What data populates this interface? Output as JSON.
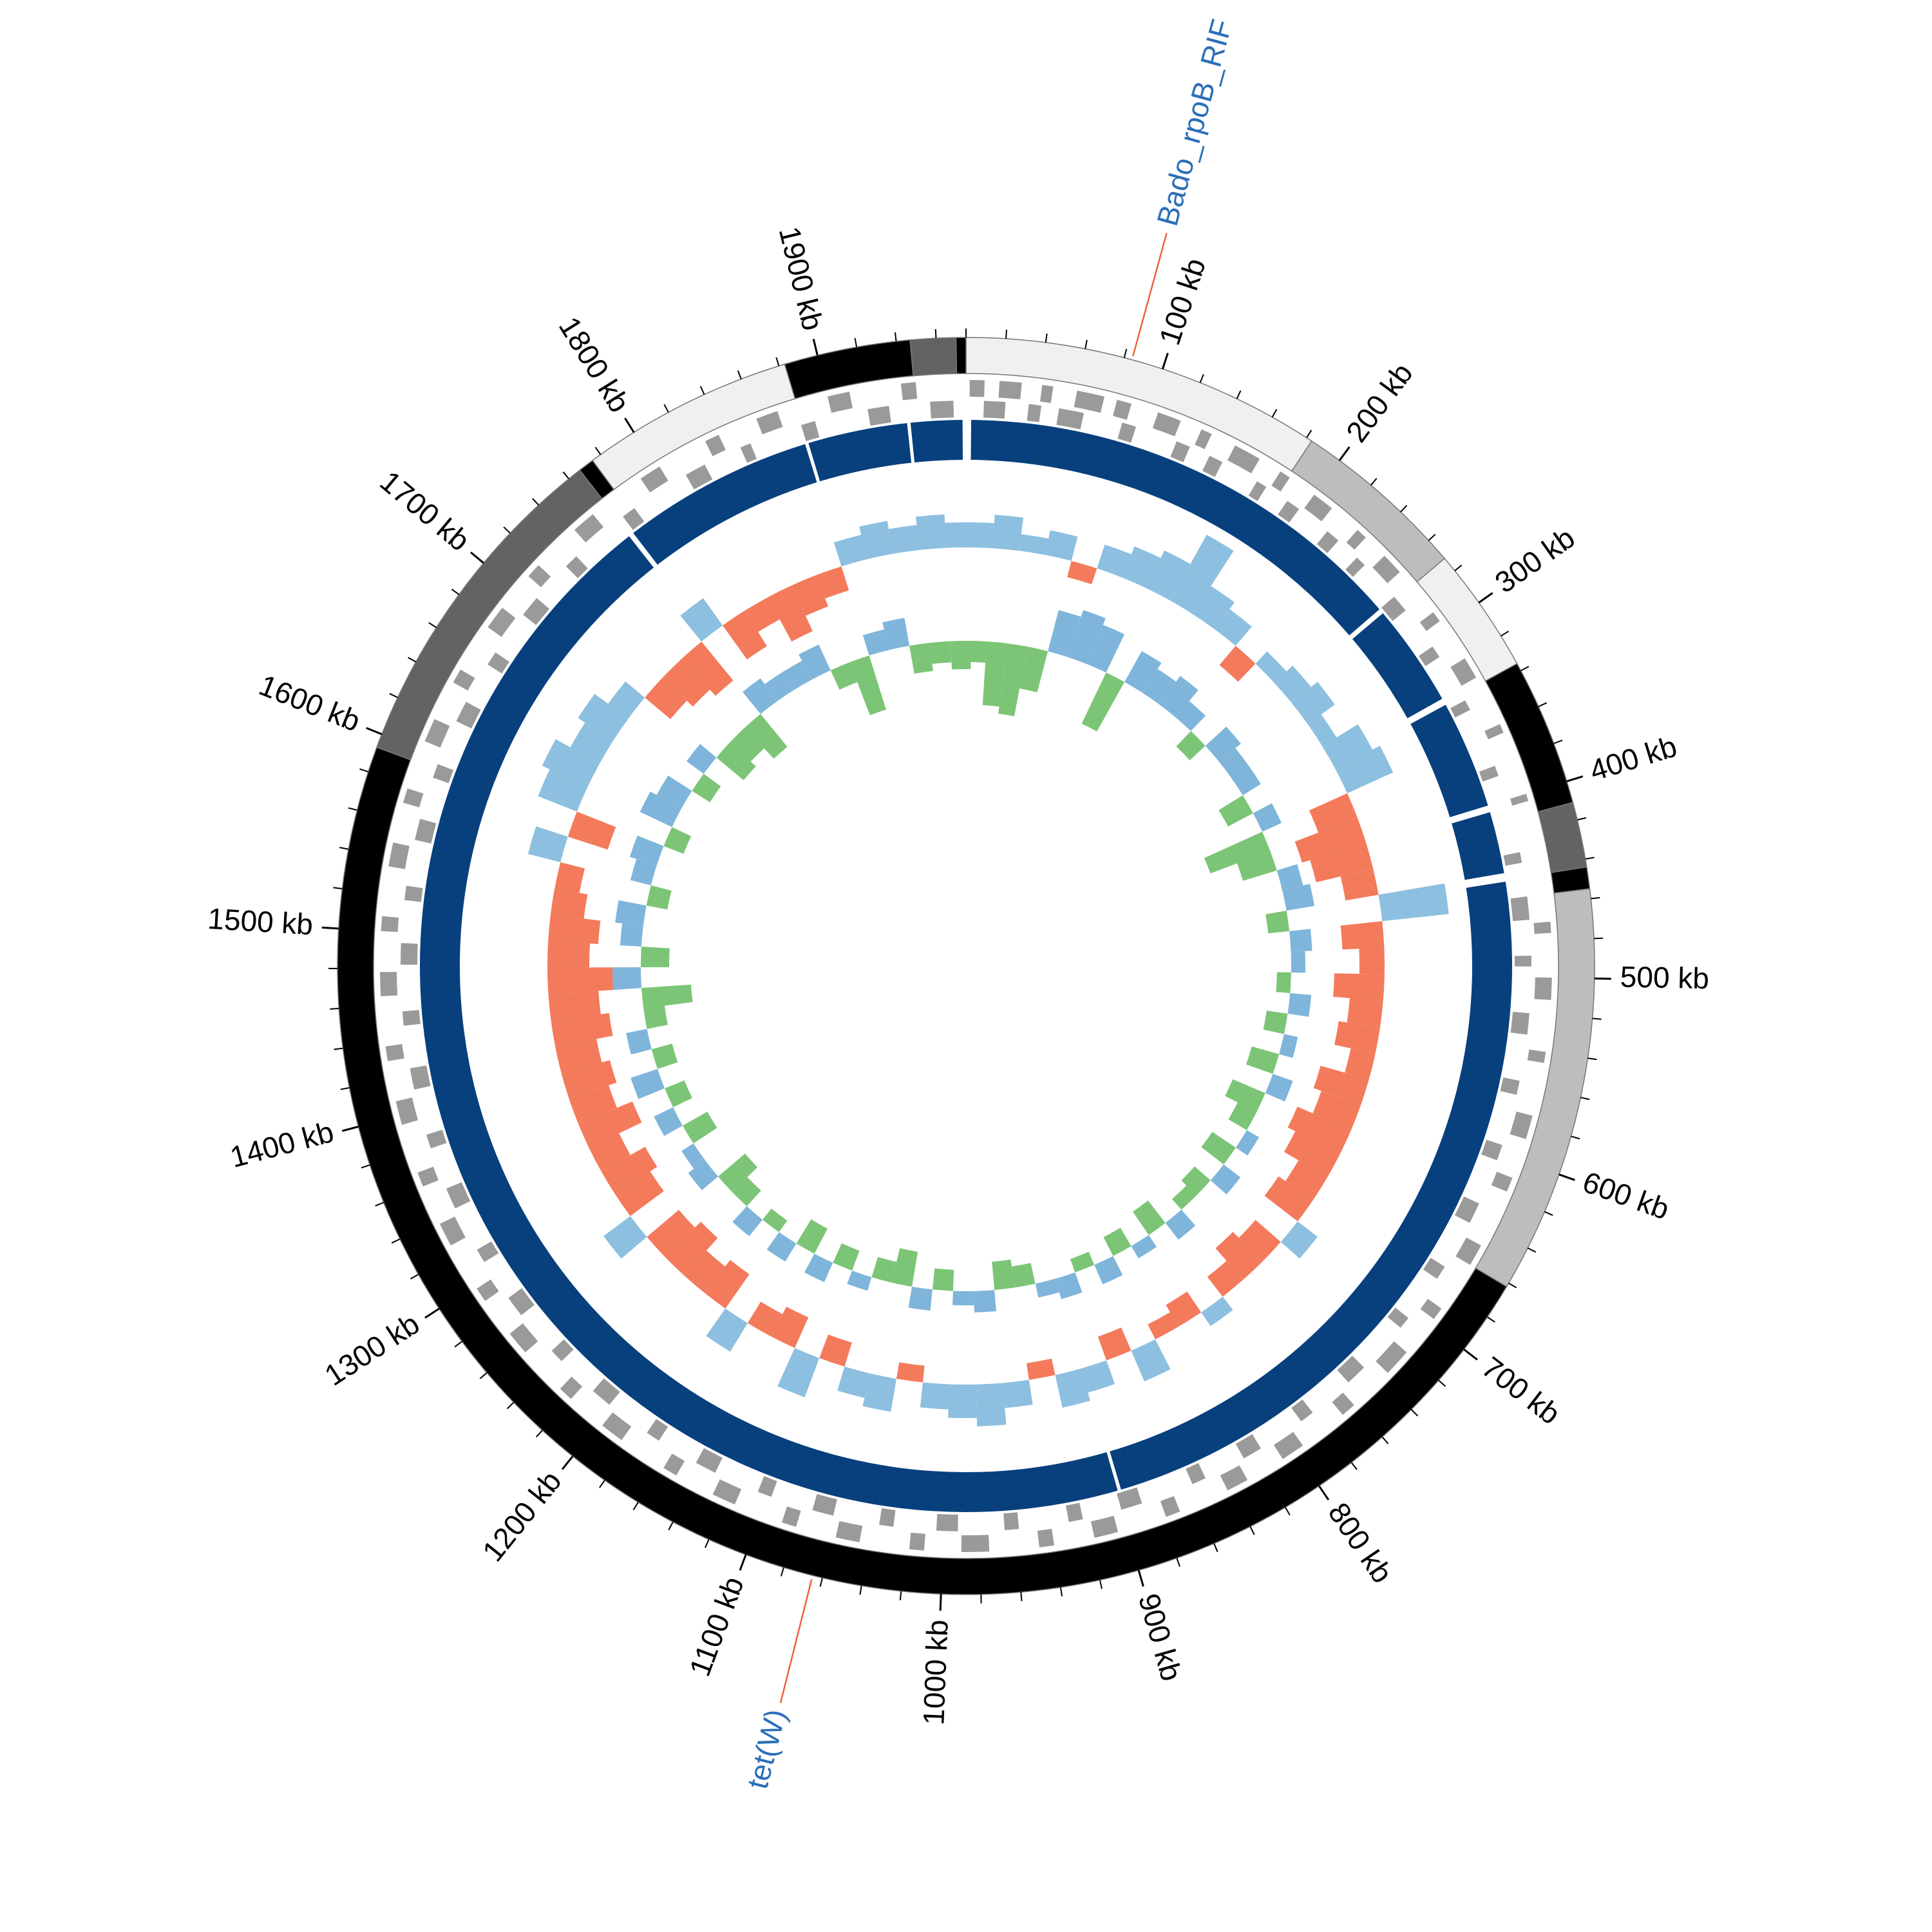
{
  "chart_data": {
    "type": "circular-genome",
    "xlim": [
      0,
      1975
    ],
    "xticks": [
      {
        "value": 100,
        "label": "100 kb"
      },
      {
        "value": 200,
        "label": "200 kb"
      },
      {
        "value": 300,
        "label": "300 kb"
      },
      {
        "value": 400,
        "label": "400 kb"
      },
      {
        "value": 500,
        "label": "500 kb"
      },
      {
        "value": 600,
        "label": "600 kb"
      },
      {
        "value": 700,
        "label": "700 kb"
      },
      {
        "value": 800,
        "label": "800 kb"
      },
      {
        "value": 900,
        "label": "900 kb"
      },
      {
        "value": 1000,
        "label": "1000 kb"
      },
      {
        "value": 1100,
        "label": "1100 kb"
      },
      {
        "value": 1200,
        "label": "1200 kb"
      },
      {
        "value": 1300,
        "label": "1300 kb"
      },
      {
        "value": 1400,
        "label": "1400 kb"
      },
      {
        "value": 1500,
        "label": "1500 kb"
      },
      {
        "value": 1600,
        "label": "1600 kb"
      },
      {
        "value": 1700,
        "label": "1700 kb"
      },
      {
        "value": 1800,
        "label": "1800 kb"
      },
      {
        "value": 1900,
        "label": "1900 kb"
      }
    ],
    "minor_tick_step": 20,
    "contigs": [
      {
        "start": 0,
        "end": 183,
        "color": "#f0f0f0"
      },
      {
        "start": 183,
        "end": 272,
        "color": "#bdbdbd"
      },
      {
        "start": 272,
        "end": 336,
        "color": "#f0f0f0"
      },
      {
        "start": 336,
        "end": 411,
        "color": "#000000"
      },
      {
        "start": 411,
        "end": 444,
        "color": "#636363"
      },
      {
        "start": 444,
        "end": 455,
        "color": "#000000"
      },
      {
        "start": 455,
        "end": 662,
        "color": "#bdbdbd"
      },
      {
        "start": 662,
        "end": 1593,
        "color": "#000000"
      },
      {
        "start": 1593,
        "end": 1767,
        "color": "#636363"
      },
      {
        "start": 1767,
        "end": 1775,
        "color": "#000000"
      },
      {
        "start": 1775,
        "end": 1883,
        "color": "#f0f0f0"
      },
      {
        "start": 1883,
        "end": 1947,
        "color": "#000000"
      },
      {
        "start": 1947,
        "end": 1970,
        "color": "#636363"
      },
      {
        "start": 1970,
        "end": 1975,
        "color": "#000000"
      }
    ],
    "genes": {
      "color": "#9a9a9a",
      "forward": [
        [
          2,
          10
        ],
        [
          18,
          30
        ],
        [
          41,
          47
        ],
        [
          60,
          75
        ],
        [
          82,
          90
        ],
        [
          105,
          118
        ],
        [
          130,
          136
        ],
        [
          150,
          165
        ],
        [
          178,
          184
        ],
        [
          200,
          212
        ],
        [
          230,
          236
        ],
        [
          250,
          262
        ],
        [
          290,
          296
        ],
        [
          320,
          332
        ],
        [
          360,
          365
        ],
        [
          400,
          404
        ],
        [
          470,
          476
        ],
        [
          500,
          512
        ],
        [
          540,
          546
        ],
        [
          575,
          588
        ],
        [
          610,
          618
        ],
        [
          650,
          662
        ],
        [
          690,
          697
        ],
        [
          720,
          735
        ],
        [
          760,
          768
        ],
        [
          795,
          808
        ],
        [
          830,
          842
        ],
        [
          870,
          878
        ],
        [
          905,
          918
        ],
        [
          940,
          948
        ],
        [
          975,
          990
        ],
        [
          1010,
          1018
        ],
        [
          1045,
          1058
        ],
        [
          1080,
          1088
        ],
        [
          1115,
          1128
        ],
        [
          1150,
          1158
        ],
        [
          1185,
          1198
        ],
        [
          1220,
          1228
        ],
        [
          1255,
          1268
        ],
        [
          1290,
          1298
        ],
        [
          1325,
          1338
        ],
        [
          1360,
          1368
        ],
        [
          1395,
          1408
        ],
        [
          1430,
          1438
        ],
        [
          1465,
          1478
        ],
        [
          1500,
          1508
        ],
        [
          1535,
          1548
        ],
        [
          1570,
          1578
        ],
        [
          1605,
          1618
        ],
        [
          1640,
          1648
        ],
        [
          1675,
          1688
        ],
        [
          1710,
          1718
        ],
        [
          1745,
          1758
        ],
        [
          1790,
          1802
        ],
        [
          1830,
          1838
        ],
        [
          1860,
          1872
        ],
        [
          1900,
          1912
        ],
        [
          1940,
          1948
        ]
      ],
      "reverse": [
        [
          10,
          22
        ],
        [
          35,
          42
        ],
        [
          52,
          66
        ],
        [
          88,
          96
        ],
        [
          120,
          128
        ],
        [
          140,
          148
        ],
        [
          170,
          176
        ],
        [
          190,
          198
        ],
        [
          218,
          226
        ],
        [
          240,
          246
        ],
        [
          270,
          280
        ],
        [
          305,
          312
        ],
        [
          340,
          346
        ],
        [
          380,
          386
        ],
        [
          430,
          436
        ],
        [
          455,
          468
        ],
        [
          488,
          494
        ],
        [
          520,
          532
        ],
        [
          558,
          566
        ],
        [
          595,
          604
        ],
        [
          630,
          642
        ],
        [
          670,
          678
        ],
        [
          705,
          712
        ],
        [
          742,
          754
        ],
        [
          780,
          788
        ],
        [
          815,
          826
        ],
        [
          850,
          858
        ],
        [
          888,
          900
        ],
        [
          922,
          930
        ],
        [
          958,
          966
        ],
        [
          992,
          1004
        ],
        [
          1028,
          1036
        ],
        [
          1062,
          1074
        ],
        [
          1098,
          1106
        ],
        [
          1132,
          1144
        ],
        [
          1168,
          1176
        ],
        [
          1202,
          1214
        ],
        [
          1238,
          1246
        ],
        [
          1272,
          1284
        ],
        [
          1308,
          1316
        ],
        [
          1342,
          1354
        ],
        [
          1378,
          1386
        ],
        [
          1412,
          1424
        ],
        [
          1448,
          1456
        ],
        [
          1482,
          1494
        ],
        [
          1518,
          1526
        ],
        [
          1552,
          1564
        ],
        [
          1588,
          1596
        ],
        [
          1622,
          1634
        ],
        [
          1658,
          1666
        ],
        [
          1692,
          1704
        ],
        [
          1728,
          1736
        ],
        [
          1770,
          1778
        ],
        [
          1812,
          1824
        ],
        [
          1846,
          1852
        ],
        [
          1882,
          1890
        ],
        [
          1920,
          1932
        ],
        [
          1955,
          1968
        ]
      ]
    },
    "hits": {
      "color": "#08407e",
      "segments": [
        [
          3,
          270
        ],
        [
          273,
          333
        ],
        [
          337,
          400
        ],
        [
          404,
          440
        ],
        [
          445,
          897
        ],
        [
          899,
          1766
        ],
        [
          1769,
          1881
        ],
        [
          1883,
          1941
        ],
        [
          1943,
          1973
        ]
      ]
    },
    "gc_content": {
      "step": 20,
      "positive_color": "#8dbfe0",
      "negative_color": "#f47a5c",
      "values": [
        0.3,
        0.4,
        0.2,
        0.3,
        -0.2,
        0.3,
        0.4,
        0.5,
        0.9,
        0.4,
        0.3,
        -0.3,
        0.2,
        0.3,
        0.4,
        0.2,
        0.5,
        0.6,
        -0.5,
        -0.8,
        -0.7,
        -0.4,
        0.8,
        -0.5,
        -0.3,
        -0.6,
        -0.4,
        -0.5,
        -0.3,
        -0.6,
        -0.5,
        -0.7,
        -0.6,
        -0.4,
        -0.5,
        0.3,
        -0.4,
        -0.5,
        -0.3,
        0.2,
        -0.3,
        -0.2,
        0.4,
        -0.3,
        0.3,
        0.4,
        -0.2,
        0.3,
        0.5,
        0.4,
        0.3,
        -0.2,
        0.4,
        0.3,
        -0.3,
        0.5,
        -0.4,
        -0.3,
        0.4,
        -0.5,
        -0.4,
        -0.6,
        -0.5,
        0.4,
        -0.5,
        -0.6,
        -0.4,
        -0.7,
        -0.5,
        -0.6,
        -0.5,
        -0.7,
        -0.6,
        -0.8,
        -0.5,
        -0.6,
        -0.4,
        -0.3,
        0.4,
        -0.5,
        0.5,
        0.6,
        0.4,
        0.5,
        0.3,
        -0.4,
        -0.5,
        -0.6,
        0.4,
        -0.5,
        -0.3,
        -0.6,
        -0.4,
        -0.3,
        0.3,
        0.4,
        0.3,
        0.4,
        0.3
      ]
    },
    "gc_skew": {
      "step": 20,
      "positive_color": "#7fb5da",
      "negative_color": "#7cc576",
      "values": [
        -0.3,
        -0.9,
        -1.0,
        -0.6,
        0.6,
        0.7,
        0.6,
        -0.8,
        0.5,
        0.4,
        0.5,
        0.3,
        -0.3,
        0.4,
        0.3,
        0.3,
        -0.4,
        0.3,
        -0.9,
        -0.5,
        0.3,
        0.4,
        -0.3,
        0.3,
        0.2,
        -0.2,
        0.3,
        -0.3,
        0.2,
        -0.4,
        0.3,
        -0.5,
        -0.3,
        0.2,
        -0.4,
        0.3,
        -0.3,
        -0.2,
        0.3,
        -0.4,
        0.2,
        -0.3,
        0.3,
        -0.2,
        0.3,
        0.2,
        -0.3,
        -0.4,
        0.3,
        0.2,
        -0.3,
        0.3,
        -0.5,
        -0.3,
        0.2,
        -0.3,
        0.3,
        -0.4,
        0.3,
        -0.2,
        0.3,
        -0.3,
        -0.5,
        0.3,
        0.2,
        -0.4,
        0.3,
        -0.3,
        0.4,
        -0.3,
        0.3,
        -0.3,
        -0.7,
        0.4,
        -0.4,
        0.3,
        0.4,
        -0.3,
        0.3,
        0.4,
        -0.3,
        0.5,
        0.4,
        -0.3,
        0.3,
        -0.5,
        -0.4,
        -0.6,
        0.4,
        0.3,
        0.3,
        0.4,
        -0.3,
        -0.8,
        0.3,
        0.4,
        -0.4,
        -0.3,
        -0.4
      ]
    },
    "annotations": [
      {
        "label": "Bado_rpoB_RIF",
        "position": 84
      },
      {
        "label": "tet(W)",
        "position": 1065
      }
    ],
    "annotation_text_color": "#2b6fb8",
    "annotation_line_color": "#f06040"
  }
}
